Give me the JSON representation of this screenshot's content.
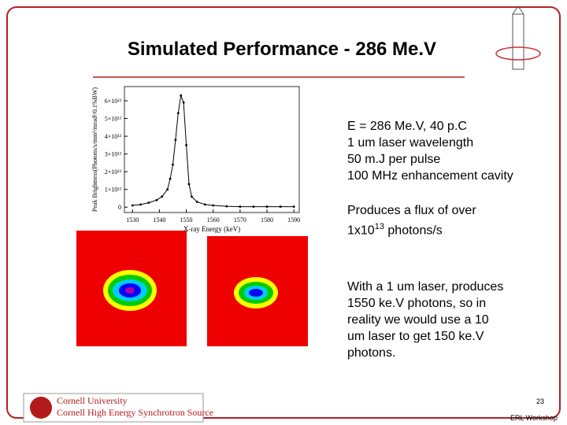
{
  "header": {
    "title": "Simulated Performance - 286 Me.V"
  },
  "plot": {
    "type": "scatter",
    "x_label": "X-ray Energy (keV)",
    "y_label": "Peak Brightness(Photons/s/mm²/mrad²/0.1%BW)",
    "xlim": [
      1527,
      1592
    ],
    "xticks": [
      1530,
      1540,
      1550,
      1560,
      1570,
      1580,
      1590
    ],
    "ylim": [
      -300000000000,
      6800000000000
    ],
    "yticks": [
      {
        "value": 0,
        "label": "0"
      },
      {
        "value": 1000000000000,
        "label": "1×10¹²"
      },
      {
        "value": 2000000000000,
        "label": "2×10¹²"
      },
      {
        "value": 3000000000000,
        "label": "3×10¹²"
      },
      {
        "value": 4000000000000,
        "label": "4×10¹²"
      },
      {
        "value": 5000000000000,
        "label": "5×10¹²"
      },
      {
        "value": 6000000000000,
        "label": "6×10¹²"
      }
    ],
    "x": [
      1530,
      1533,
      1536,
      1539,
      1541,
      1543,
      1544,
      1545,
      1546,
      1547,
      1548,
      1549,
      1550,
      1551,
      1552,
      1554,
      1557,
      1560,
      1565,
      1570,
      1575,
      1580,
      1585,
      1590
    ],
    "y": [
      100000000000,
      150000000000,
      250000000000,
      400000000000,
      600000000000,
      1000000000000,
      1600000000000,
      2400000000000,
      3800000000000,
      5300000000000,
      6300000000000,
      5900000000000,
      3500000000000,
      1300000000000,
      600000000000,
      300000000000,
      150000000000,
      100000000000,
      50000000000,
      30000000000,
      30000000000,
      30000000000,
      30000000000,
      30000000000
    ],
    "color": "#000000"
  },
  "text_blocks": [
    {
      "lines": [
        "E = 286 Me.V, 40 p.C",
        "1 um laser wavelength",
        "50 m.J per pulse",
        "100 MHz enhancement cavity"
      ]
    },
    {
      "lines": [
        "Produces a flux of over"
      ],
      "flux": {
        "base": "1x10",
        "exponent": "13",
        "rest": "photons/s"
      }
    },
    {
      "lines": [
        "With a 1 um laser, produces",
        "1550 ke.V photons, so in",
        "reality we would use a 10",
        "um laser to get 150 ke.V",
        "photons."
      ]
    }
  ],
  "footer": {
    "logo_top": "Cornell University",
    "logo_bottom": "Cornell High Energy Synchrotron Source",
    "page_number": "23",
    "event": "ERL Workshop"
  }
}
